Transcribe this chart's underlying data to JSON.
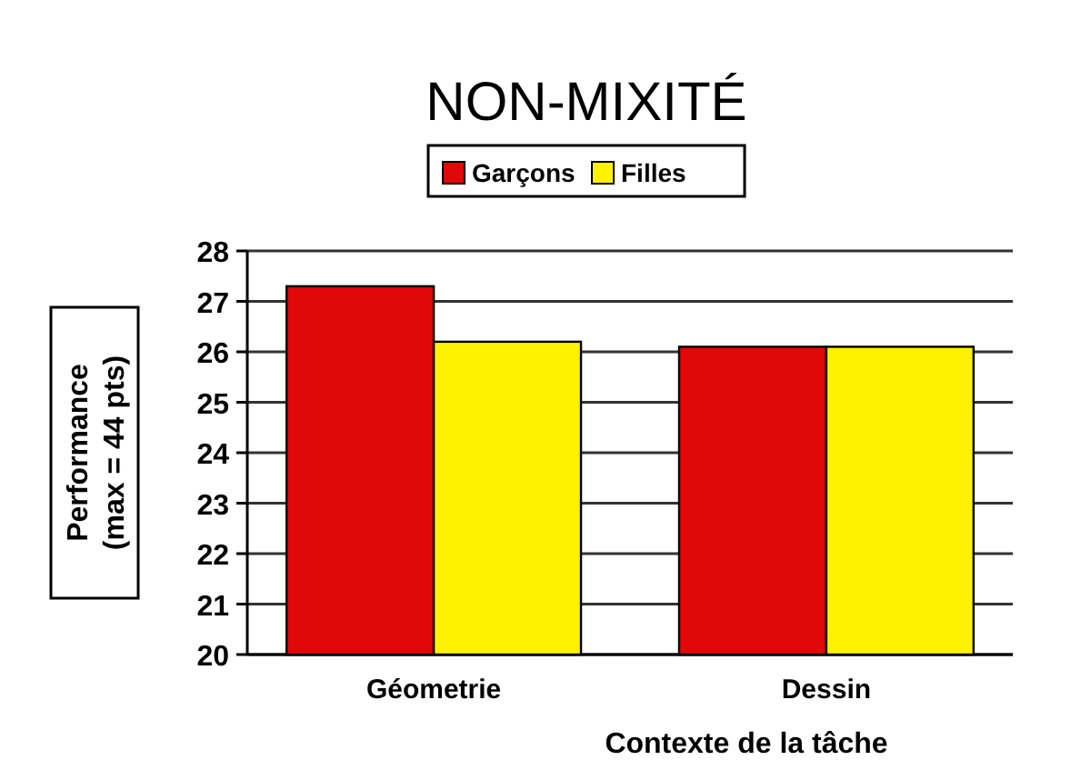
{
  "chart_data": {
    "type": "bar",
    "title": "NON-MIXITÉ",
    "xlabel": "Contexte de la tâche",
    "ylabel": "Performance\n(max = 44 pts)",
    "categories": [
      "Géometrie",
      "Dessin"
    ],
    "series": [
      {
        "name": "Garçons",
        "color": "#e00808",
        "values": [
          27.3,
          26.1
        ]
      },
      {
        "name": "Filles",
        "color": "#fff200",
        "values": [
          26.2,
          26.1
        ]
      }
    ],
    "ylim": [
      20,
      28
    ],
    "yticks": [
      20,
      21,
      22,
      23,
      24,
      25,
      26,
      27,
      28
    ],
    "grid": "y",
    "legend": "top"
  }
}
